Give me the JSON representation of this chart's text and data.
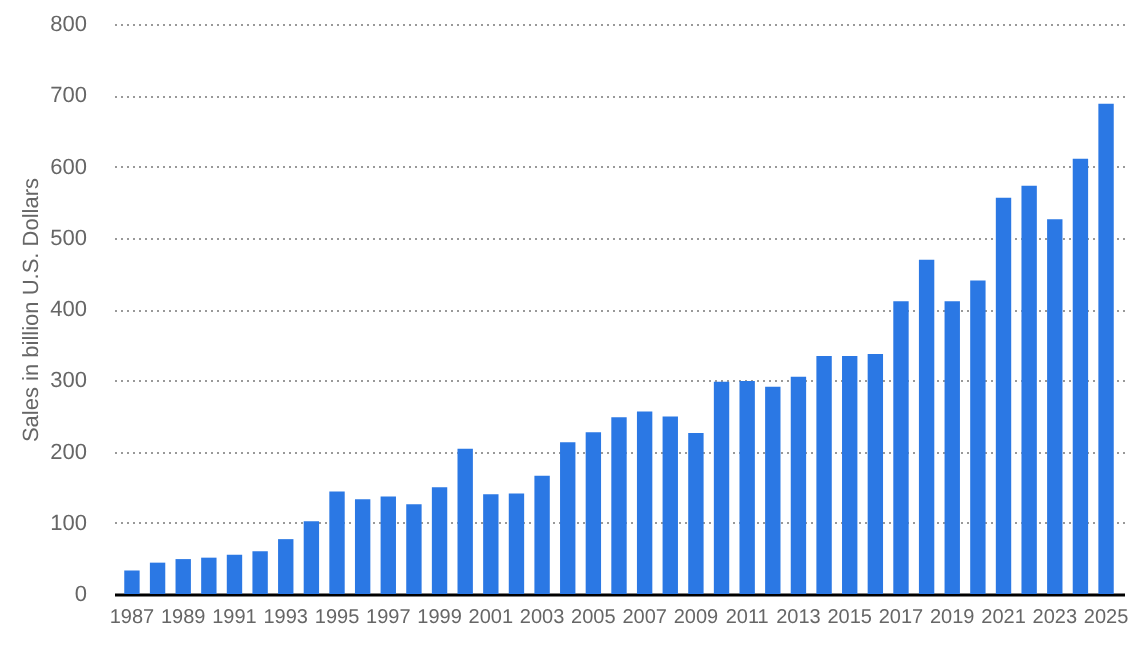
{
  "chart_data": {
    "type": "bar",
    "ylabel": "Sales in billion U.S. Dollars",
    "categories": [
      "1987",
      null,
      "1989",
      null,
      "1991",
      null,
      "1993",
      null,
      "1995",
      null,
      "1997",
      null,
      "1999",
      null,
      "2001",
      null,
      "2003",
      null,
      "2005",
      null,
      "2007",
      null,
      "2009",
      null,
      "2011",
      null,
      "2013",
      null,
      "2015",
      null,
      "2017",
      null,
      "2019",
      null,
      "2021",
      null,
      "2023",
      null,
      "2025"
    ],
    "values": [
      33,
      44,
      49,
      51,
      55,
      60,
      77,
      102,
      144,
      133,
      137,
      126,
      150,
      204,
      140,
      141,
      166,
      213,
      227,
      248,
      256,
      249,
      226,
      298,
      299,
      291,
      305,
      334,
      334,
      337,
      411,
      469,
      411,
      440,
      556,
      573,
      526,
      611,
      688
    ],
    "color": "#2b78e4",
    "ylim": [
      0,
      800
    ],
    "yticks": [
      0,
      100,
      200,
      300,
      400,
      500,
      600,
      700,
      800
    ],
    "grid": true
  }
}
